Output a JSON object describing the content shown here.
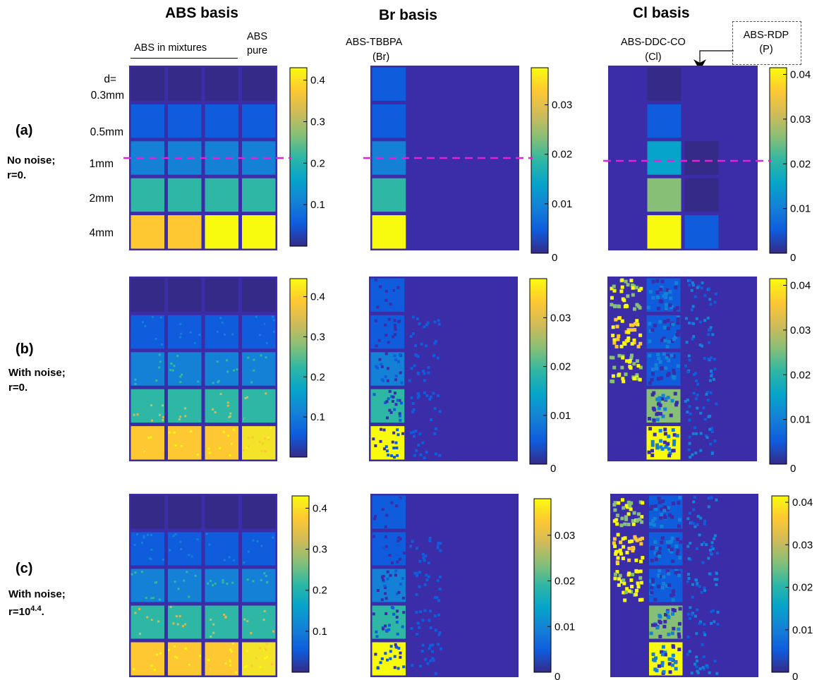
{
  "columns": {
    "abs": {
      "title": "ABS basis",
      "mix_label": "ABS in mixtures",
      "pure_label": [
        "ABS",
        "pure"
      ]
    },
    "br": {
      "title": "Br basis",
      "material_label": [
        "ABS-TBBPA",
        "(Br)"
      ]
    },
    "cl": {
      "title": "Cl basis",
      "material_label": [
        "ABS-DDC-CO",
        "(Cl)"
      ],
      "rdp_label": [
        "ABS-RDP",
        "(P)"
      ]
    }
  },
  "rows": [
    {
      "tag": "(a)",
      "label": [
        "No noise;",
        "r=0."
      ]
    },
    {
      "tag": "(b)",
      "label": [
        "With noise;",
        "r=0."
      ]
    },
    {
      "tag": "(c)",
      "label": [
        "With noise;",
        "r=10",
        "4.4",
        "."
      ]
    }
  ],
  "thickness": {
    "prefix": "d=",
    "values": [
      "0.3mm",
      "0.5mm",
      "1mm",
      "2mm",
      "4mm"
    ]
  },
  "colorbars": {
    "abs_a": [
      "0.4",
      "0.3",
      "0.2",
      "0.1"
    ],
    "abs_b": [
      "0.4",
      "0.3",
      "0.2",
      "0.1"
    ],
    "abs_c": [
      "0.4",
      "0.3",
      "0.2",
      "0.1"
    ],
    "br": [
      "0.03",
      "0.02",
      "0.01",
      "0"
    ],
    "cl": [
      "0.04",
      "0.03",
      "0.02",
      "0.01",
      "0"
    ]
  },
  "colors": {
    "background_map": "#3b2ca8",
    "parula": [
      "#352a87",
      "#0f5cdd",
      "#1481d6",
      "#06a4ca",
      "#2eb7a4",
      "#87bf77",
      "#d1bb59",
      "#fec832",
      "#f9fb0e"
    ],
    "dashed_line": "#e81ed8"
  }
}
